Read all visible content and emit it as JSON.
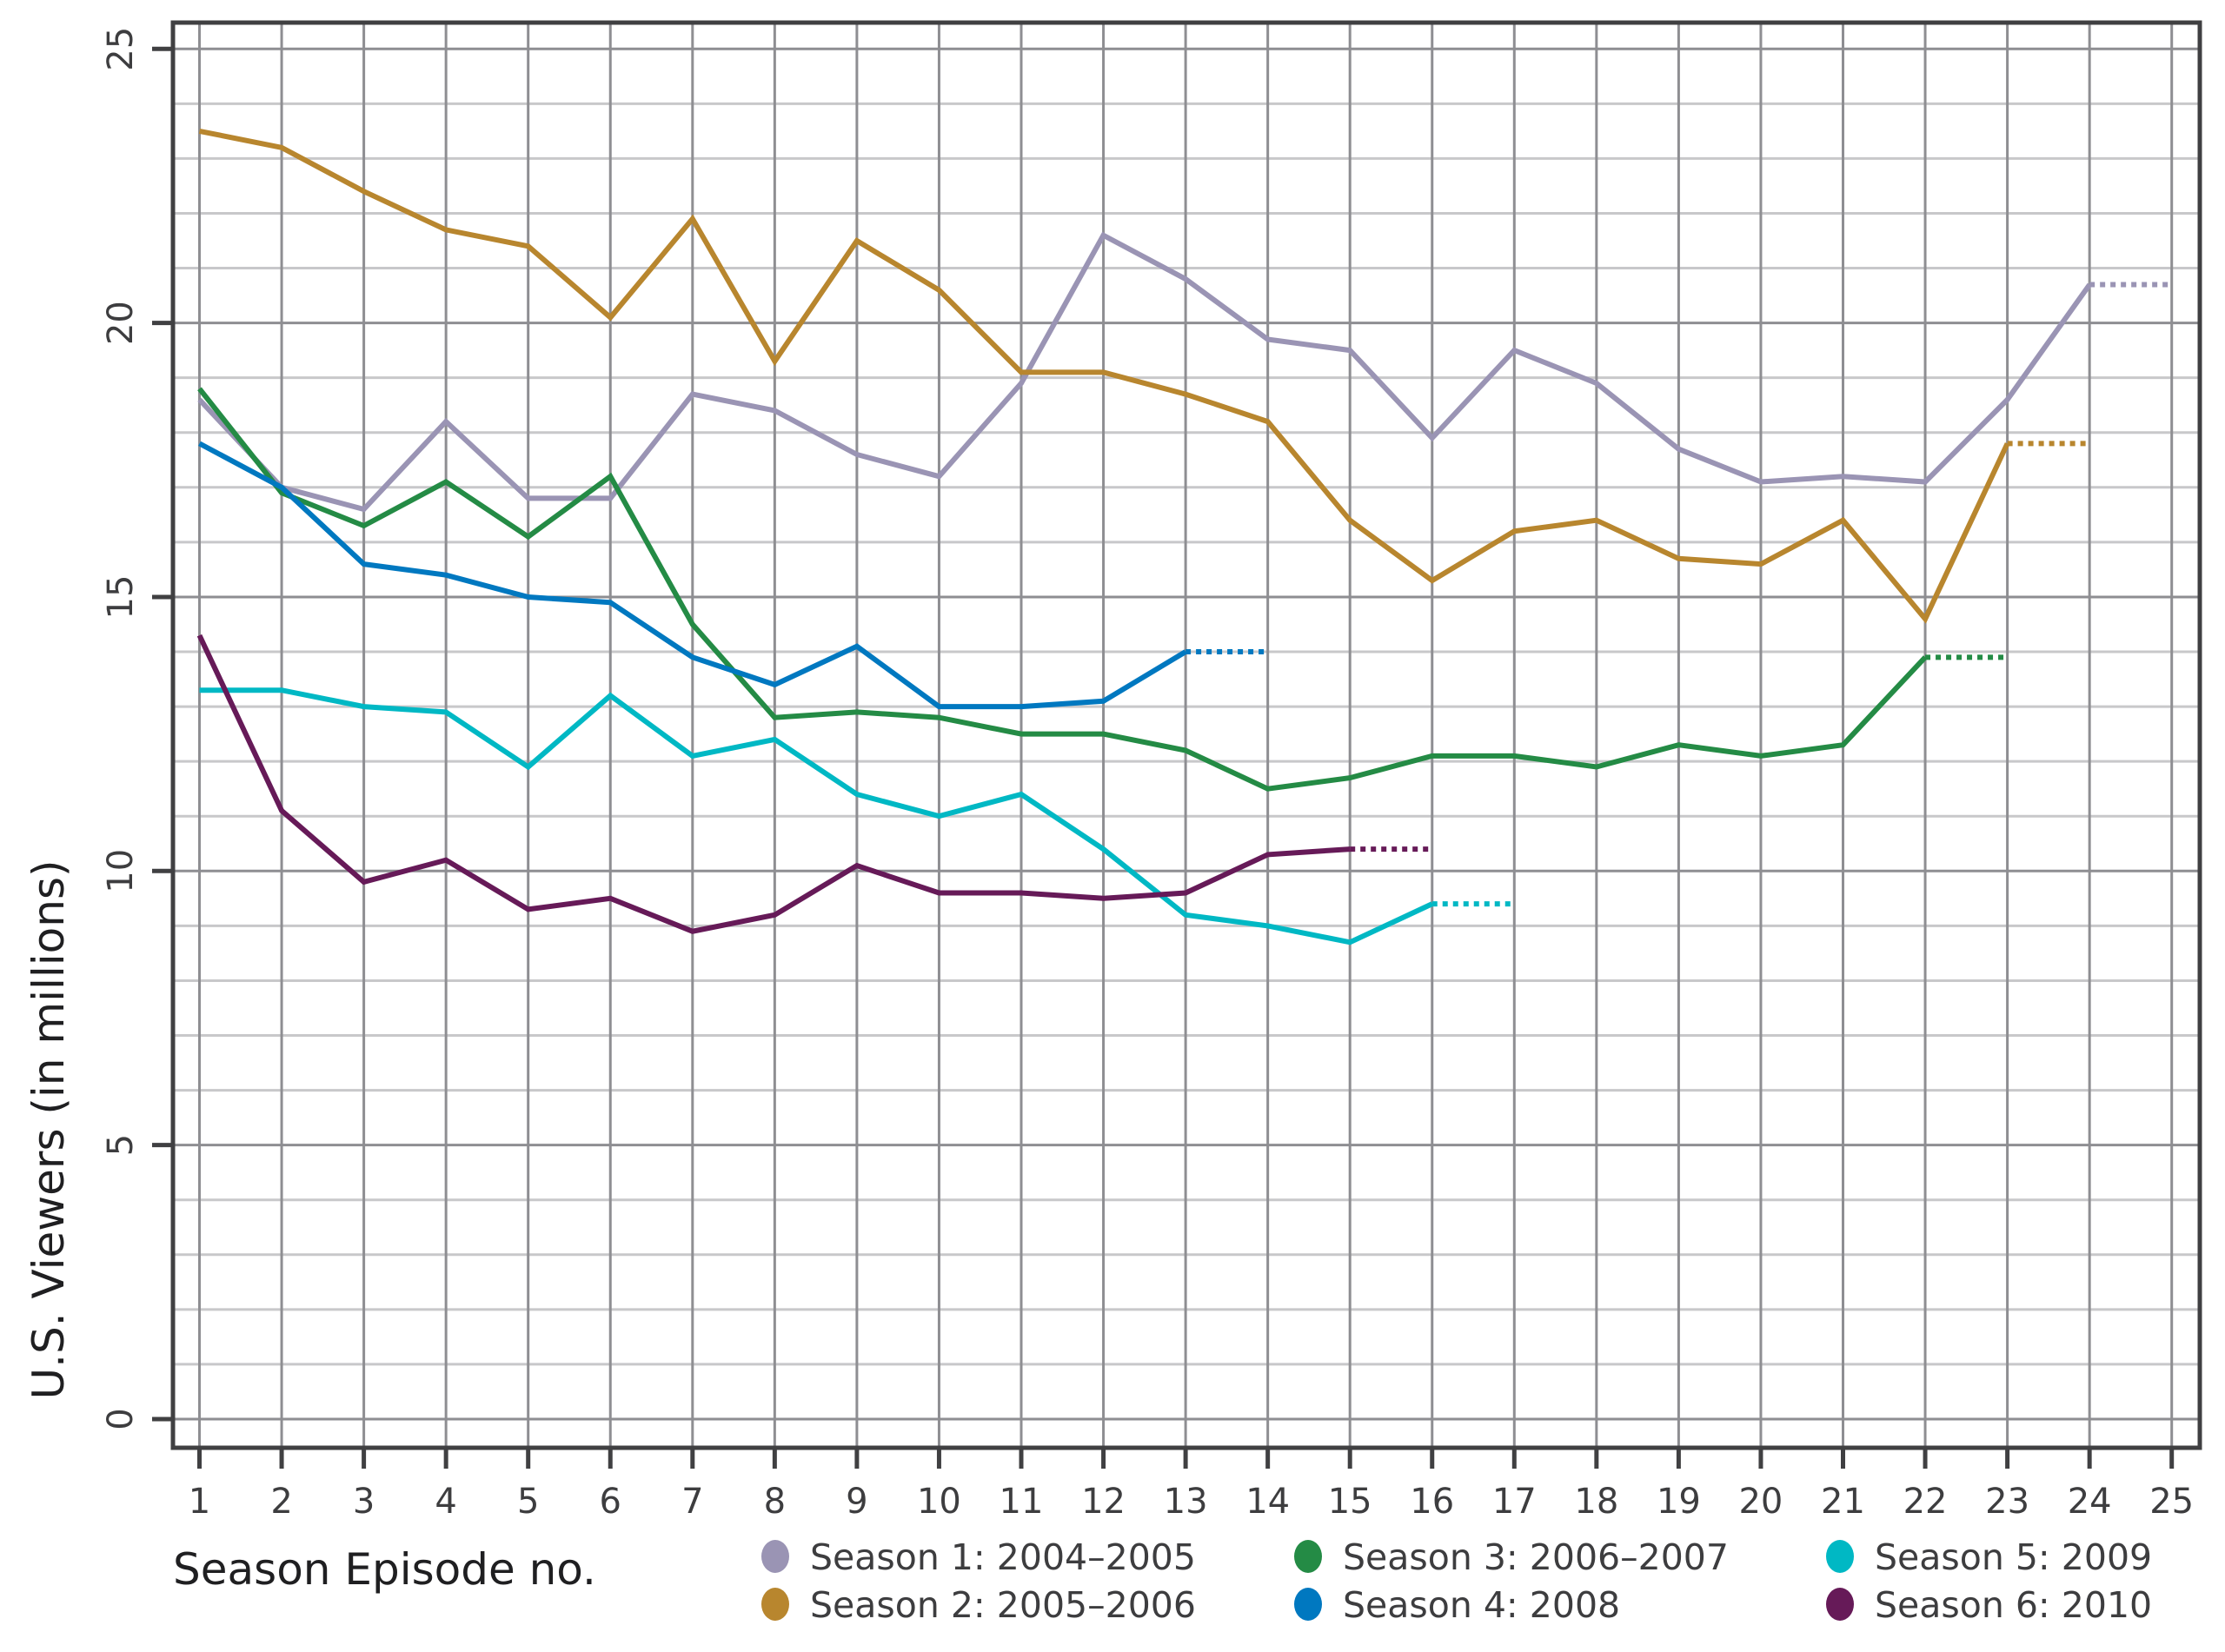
{
  "chart_data": {
    "type": "line",
    "title": "",
    "xlabel": "Season Episode no.",
    "ylabel": "U.S. Viewers (in millions)",
    "xlim": [
      1,
      25
    ],
    "ylim": [
      0,
      25
    ],
    "x": [
      1,
      2,
      3,
      4,
      5,
      6,
      7,
      8,
      9,
      10,
      11,
      12,
      13,
      14,
      15,
      16,
      17,
      18,
      19,
      20,
      21,
      22,
      23,
      24,
      25
    ],
    "x_ticks": [
      "1",
      "2",
      "3",
      "4",
      "5",
      "6",
      "7",
      "8",
      "9",
      "10",
      "11",
      "12",
      "13",
      "14",
      "15",
      "16",
      "17",
      "18",
      "19",
      "20",
      "21",
      "22",
      "23",
      "24",
      "25"
    ],
    "y_ticks": [
      "0",
      "5",
      "10",
      "15",
      "20",
      "25"
    ],
    "grid": {
      "major": true,
      "minor_y_step": 1,
      "major_y_step": 5,
      "x_step": 1
    },
    "legend_position": "bottom",
    "series": [
      {
        "name": "Season 1: 2004–2005",
        "color": "#9a94b4",
        "values": [
          18.6,
          17.0,
          16.6,
          18.2,
          16.8,
          16.8,
          18.7,
          18.4,
          17.6,
          17.2,
          18.9,
          21.6,
          20.8,
          19.7,
          19.5,
          17.9,
          19.5,
          18.9,
          17.7,
          17.1,
          17.2,
          17.1,
          18.6,
          20.7
        ],
        "dotted_extension_to": 25
      },
      {
        "name": "Season 2: 2005–2006",
        "color": "#b8862e",
        "values": [
          23.5,
          23.2,
          22.4,
          21.7,
          21.4,
          20.1,
          21.9,
          19.3,
          21.5,
          20.6,
          19.1,
          19.1,
          18.7,
          18.2,
          16.4,
          15.3,
          16.2,
          16.4,
          15.7,
          15.6,
          16.4,
          14.6,
          17.8
        ],
        "dotted_extension_to": 24
      },
      {
        "name": "Season 3: 2006–2007",
        "color": "#248b45",
        "values": [
          18.8,
          16.9,
          16.3,
          17.1,
          16.1,
          17.2,
          14.5,
          12.8,
          12.9,
          12.8,
          12.5,
          12.5,
          12.2,
          11.5,
          11.7,
          12.1,
          12.1,
          11.9,
          12.3,
          12.1,
          12.3,
          13.9
        ],
        "dotted_extension_to": 23
      },
      {
        "name": "Season 4: 2008",
        "color": "#0078c0",
        "values": [
          17.8,
          17.0,
          15.6,
          15.4,
          15.0,
          14.9,
          13.9,
          13.4,
          14.1,
          13.0,
          13.0,
          13.1,
          14.0
        ],
        "dotted_extension_to": 14
      },
      {
        "name": "Season 5: 2009",
        "color": "#00b8c4",
        "values": [
          13.3,
          13.3,
          13.0,
          12.9,
          11.9,
          13.2,
          12.1,
          12.4,
          11.4,
          11.0,
          11.4,
          10.4,
          9.2,
          9.0,
          8.7,
          9.4
        ],
        "dotted_extension_to": 17
      },
      {
        "name": "Season 6: 2010",
        "color": "#661a58",
        "values": [
          14.3,
          11.1,
          9.8,
          10.2,
          9.3,
          9.5,
          8.9,
          9.2,
          10.1,
          9.6,
          9.6,
          9.5,
          9.6,
          10.3,
          10.4
        ],
        "dotted_extension_to": 16
      }
    ]
  },
  "legend": {
    "items": [
      {
        "label": "Season 1: 2004–2005",
        "color": "#9a94b4"
      },
      {
        "label": "Season 2: 2005–2006",
        "color": "#b8862e"
      },
      {
        "label": "Season 3: 2006–2007",
        "color": "#248b45"
      },
      {
        "label": "Season 4: 2008",
        "color": "#0078c0"
      },
      {
        "label": "Season 5: 2009",
        "color": "#00b8c4"
      },
      {
        "label": "Season 6: 2010",
        "color": "#661a58"
      }
    ]
  },
  "colors": {
    "spine": "#404042",
    "major_grid": "#8e8e92",
    "minor_grid": "#c8c8ca",
    "background": "#ffffff"
  }
}
